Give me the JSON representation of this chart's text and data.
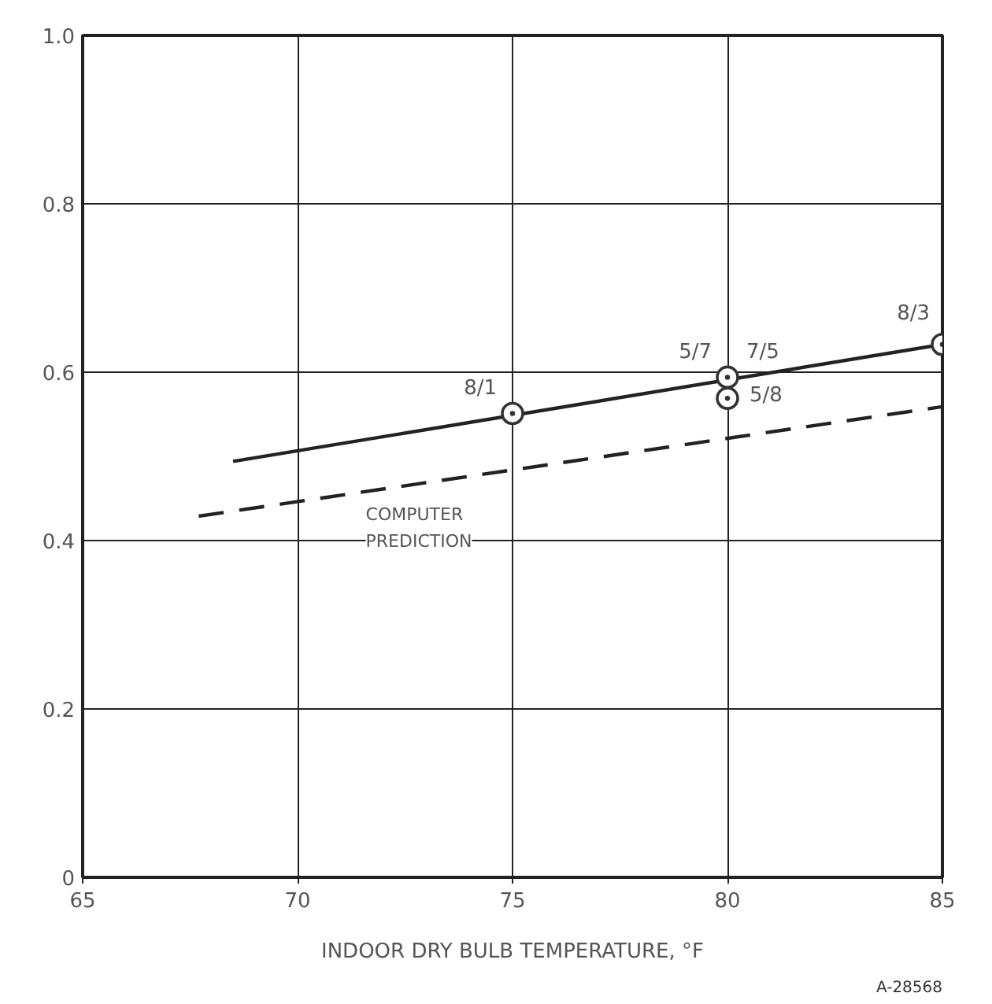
{
  "chart_data": {
    "type": "scatter",
    "xlabel": "INDOOR DRY BULB TEMPERATURE, °F",
    "x": [
      75,
      80,
      80,
      85
    ],
    "series": [
      {
        "color": "#333333",
        "values": [
          0.551,
          0.594,
          0.569,
          0.633
        ],
        "marker": "circle"
      },
      {
        "type": "line",
        "color": "#222222",
        "x": [
          68.5,
          85
        ],
        "values": [
          0.494,
          0.633
        ],
        "line_style": "solid"
      },
      {
        "type": "line",
        "name": "COMPUTER PREDICTION",
        "color": "#222222",
        "x": [
          67.7,
          85
        ],
        "values": [
          0.429,
          0.559
        ],
        "line_style": "dashed"
      }
    ],
    "annotations": [
      {
        "text": "8/1",
        "x": 75,
        "y": 0.551
      },
      {
        "text": "5/7",
        "x": 80,
        "y": 0.594
      },
      {
        "text": "7/5",
        "x": 80,
        "y": 0.594
      },
      {
        "text": "5/8",
        "x": 80,
        "y": 0.569
      },
      {
        "text": "8/3",
        "x": 85,
        "y": 0.633
      },
      "A-28568"
    ],
    "xlim": [
      65,
      85
    ],
    "ylim": [
      0,
      1.0
    ],
    "xticks": [
      65,
      70,
      75,
      80,
      85
    ],
    "yticks": [
      0,
      0.2,
      0.4,
      0.6,
      0.8,
      {
        "value": 1.0,
        "label": "1.0"
      }
    ],
    "grid": true
  }
}
